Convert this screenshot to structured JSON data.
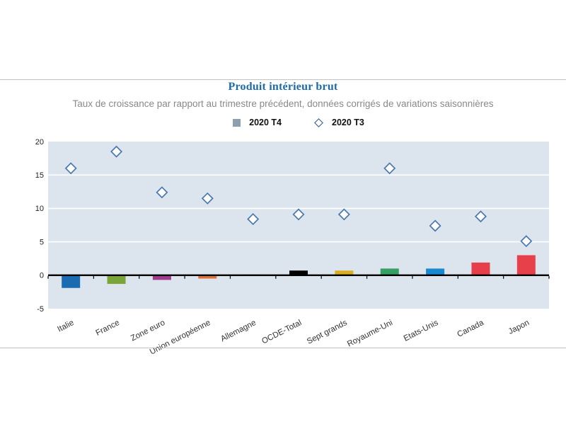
{
  "chart_data": {
    "type": "bar",
    "title": "Produit intérieur brut",
    "subtitle": "Taux de croissance par rapport au trimestre précédent, données corrigés de variations saisonnières",
    "categories": [
      "Italie",
      "France",
      "Zone euro",
      "Union européenne",
      "Allemagne",
      "OCDE-Total",
      "Sept grands",
      "Royaume-Uni",
      "Etats-Unis",
      "Canada",
      "Japon"
    ],
    "series": [
      {
        "name": "2020 T4",
        "type": "bar",
        "values": [
          -1.9,
          -1.3,
          -0.7,
          -0.5,
          0.1,
          0.7,
          0.7,
          1.0,
          1.0,
          1.9,
          3.0
        ],
        "colors": [
          "#1A6CB2",
          "#7AA639",
          "#A13B8D",
          "#DE713A",
          "#555555",
          "#000000",
          "#DBAD22",
          "#34A063",
          "#1889D0",
          "#E63F49",
          "#E7404A"
        ]
      },
      {
        "name": "2020 T3",
        "type": "scatter",
        "marker": "diamond-outline",
        "values": [
          16.0,
          18.5,
          12.4,
          11.5,
          8.4,
          9.1,
          9.1,
          16.0,
          7.4,
          8.8,
          5.1
        ],
        "marker_fill": "#FFFFFF",
        "marker_stroke": "#4A77AD"
      }
    ],
    "ylim": [
      -5,
      20
    ],
    "yticks": [
      20,
      15,
      10,
      5,
      0,
      -5
    ],
    "gridlines": [
      15,
      10,
      5
    ],
    "grid_color": "#FFFFFF",
    "plot_bg": "#DCE5ED",
    "axis_color": "#000000",
    "tick_label_color": "#222222",
    "x_label_rotation_deg": -27,
    "legend_position": "top-center"
  },
  "legend_style": {
    "square_color": "#8CA0B0",
    "diamond_border_color": "#2B4E87"
  }
}
